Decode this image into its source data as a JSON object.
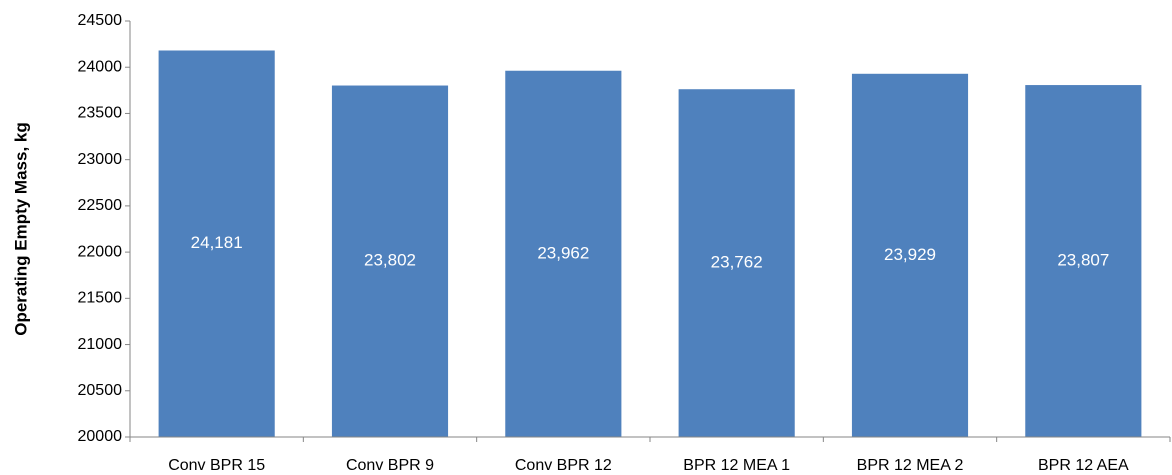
{
  "chart_data": {
    "type": "bar",
    "y_label": "Operating Empty Mass, kg",
    "categories": [
      "Conv BPR 15",
      "Conv BPR 9",
      "Conv BPR 12",
      "BPR 12 MEA 1",
      "BPR 12 MEA 2",
      "BPR 12 AEA"
    ],
    "values": [
      24181,
      23802,
      23962,
      23762,
      23929,
      23807
    ],
    "value_labels": [
      "24,181",
      "23,802",
      "23,962",
      "23,762",
      "23,929",
      "23,807"
    ],
    "color": "#4f81bd",
    "ylim": [
      20000,
      24500
    ],
    "yticks": [
      20000,
      20500,
      21000,
      21500,
      22000,
      22500,
      23000,
      23500,
      24000,
      24500
    ],
    "grid": false
  }
}
